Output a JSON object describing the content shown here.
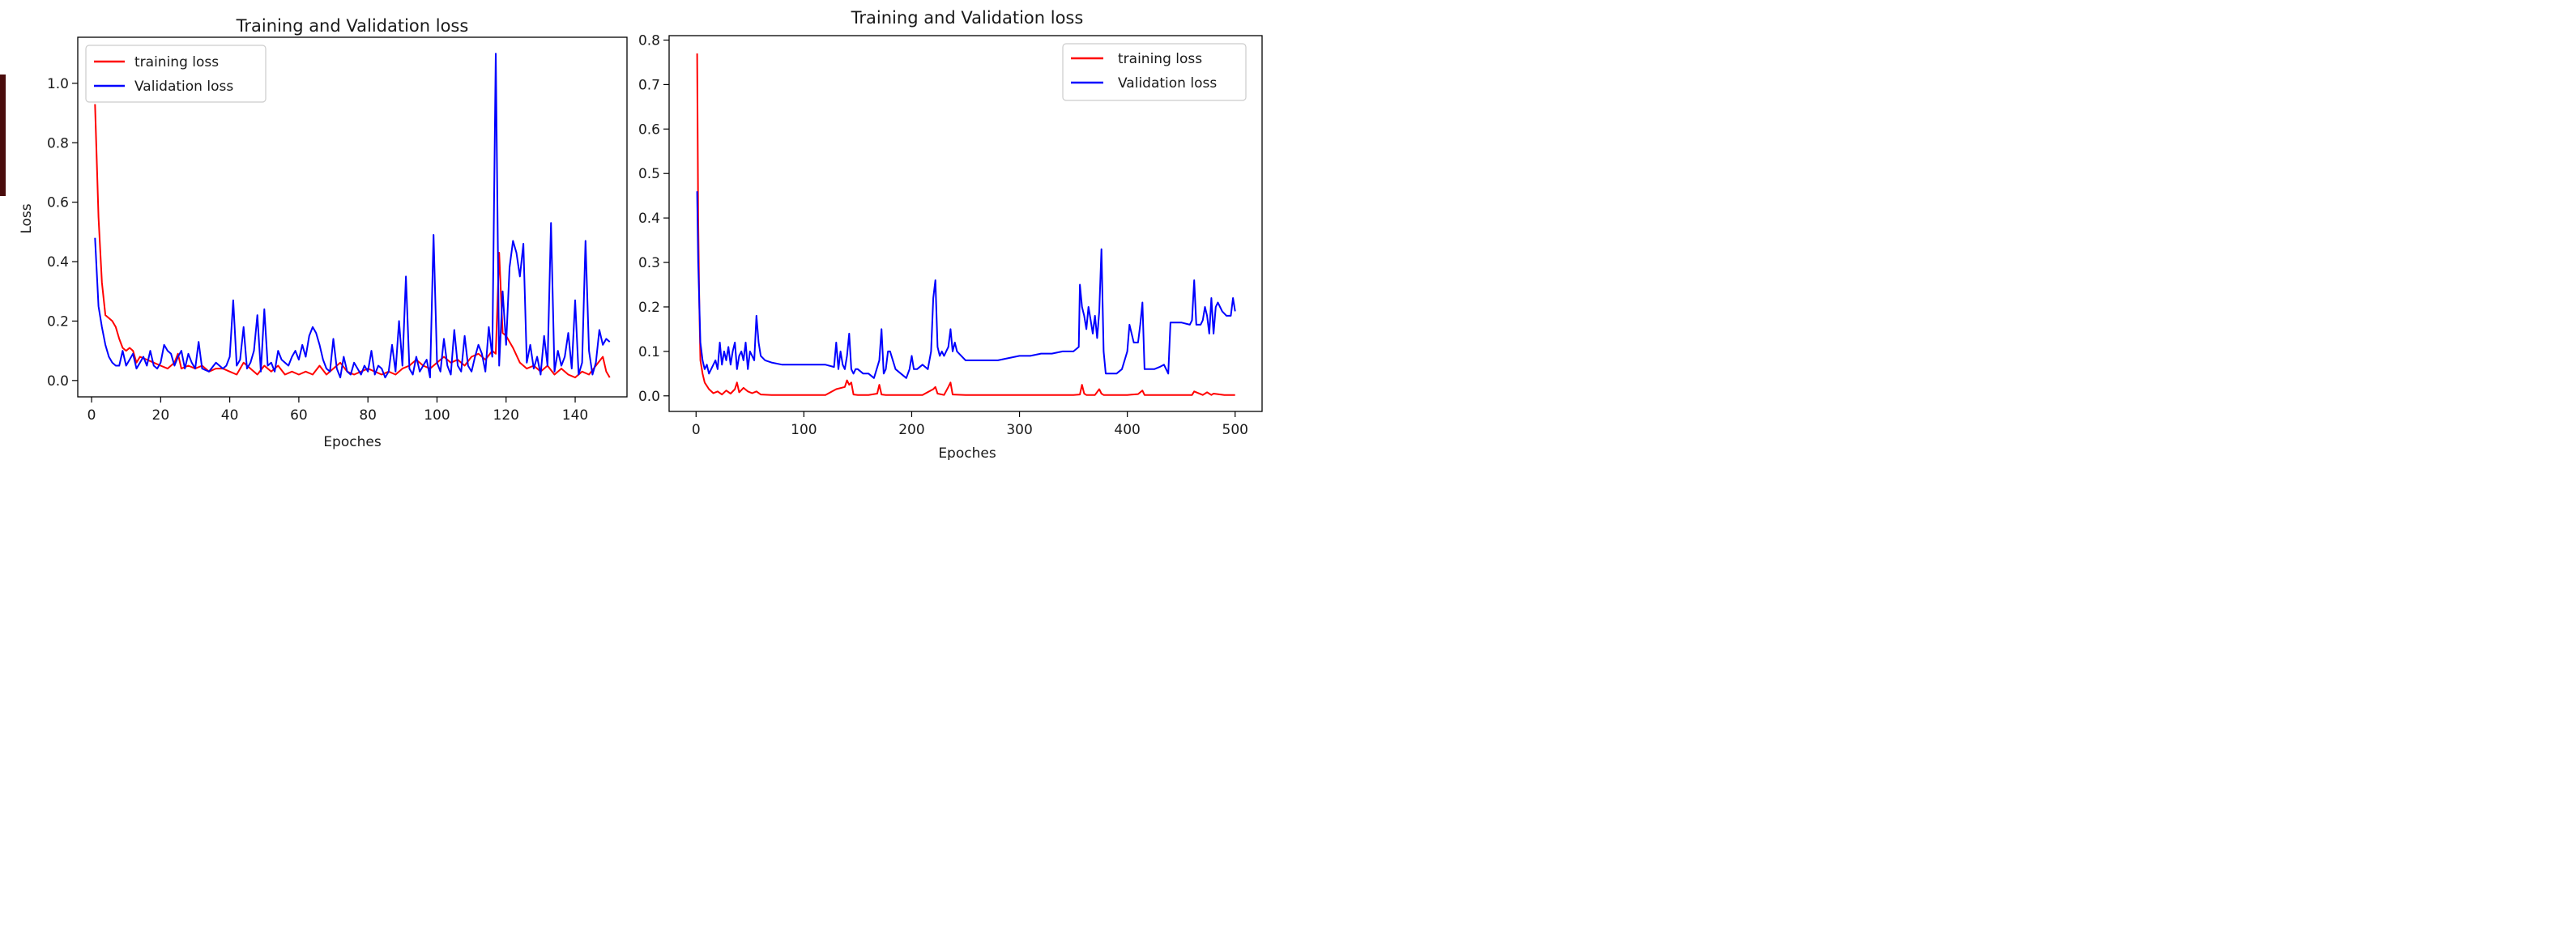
{
  "chart_data": [
    {
      "type": "line",
      "title": "Training and Validation loss",
      "xlabel": "Epoches",
      "ylabel": "Loss",
      "xlim": [
        -4,
        155
      ],
      "ylim": [
        -0.055,
        1.155
      ],
      "xticks": [
        0,
        20,
        40,
        60,
        80,
        100,
        120,
        140
      ],
      "yticks": [
        0.0,
        0.2,
        0.4,
        0.6,
        0.8,
        1.0
      ],
      "ytick_format": 1,
      "legend_position": "top-left",
      "grid": false,
      "series": [
        {
          "name": "training loss",
          "color": "#ff0000",
          "x": [
            1,
            2,
            3,
            4,
            5,
            6,
            7,
            8,
            9,
            10,
            11,
            12,
            13,
            14,
            16,
            18,
            20,
            22,
            24,
            25,
            26,
            28,
            30,
            32,
            34,
            36,
            38,
            40,
            42,
            44,
            46,
            48,
            50,
            52,
            54,
            56,
            58,
            60,
            62,
            64,
            66,
            68,
            70,
            72,
            74,
            76,
            78,
            80,
            82,
            84,
            86,
            88,
            90,
            92,
            94,
            96,
            98,
            100,
            102,
            104,
            106,
            108,
            110,
            112,
            114,
            116,
            117,
            118,
            119,
            120,
            122,
            124,
            126,
            128,
            130,
            132,
            134,
            136,
            138,
            140,
            142,
            144,
            146,
            148,
            149,
            150
          ],
          "y": [
            0.93,
            0.55,
            0.33,
            0.22,
            0.21,
            0.2,
            0.18,
            0.14,
            0.11,
            0.1,
            0.11,
            0.1,
            0.06,
            0.08,
            0.07,
            0.06,
            0.05,
            0.04,
            0.06,
            0.09,
            0.04,
            0.05,
            0.04,
            0.05,
            0.03,
            0.04,
            0.04,
            0.03,
            0.02,
            0.06,
            0.04,
            0.02,
            0.05,
            0.03,
            0.05,
            0.02,
            0.03,
            0.02,
            0.03,
            0.02,
            0.05,
            0.02,
            0.04,
            0.06,
            0.03,
            0.02,
            0.03,
            0.04,
            0.03,
            0.02,
            0.03,
            0.02,
            0.04,
            0.05,
            0.07,
            0.05,
            0.04,
            0.06,
            0.08,
            0.06,
            0.07,
            0.05,
            0.08,
            0.09,
            0.07,
            0.1,
            0.09,
            0.43,
            0.16,
            0.15,
            0.11,
            0.06,
            0.04,
            0.05,
            0.03,
            0.05,
            0.02,
            0.04,
            0.02,
            0.01,
            0.03,
            0.02,
            0.05,
            0.08,
            0.03,
            0.01
          ]
        },
        {
          "name": "Validation loss",
          "color": "#0000ff",
          "x": [
            1,
            2,
            3,
            4,
            5,
            6,
            7,
            8,
            9,
            10,
            12,
            13,
            14,
            15,
            16,
            17,
            18,
            19,
            20,
            21,
            22,
            23,
            24,
            25,
            26,
            27,
            28,
            29,
            30,
            31,
            32,
            34,
            36,
            38,
            39,
            40,
            41,
            42,
            43,
            44,
            45,
            46,
            47,
            48,
            49,
            50,
            51,
            52,
            53,
            54,
            55,
            56,
            57,
            58,
            59,
            60,
            61,
            62,
            63,
            64,
            65,
            66,
            67,
            68,
            69,
            70,
            71,
            72,
            73,
            74,
            75,
            76,
            77,
            78,
            79,
            80,
            81,
            82,
            83,
            84,
            85,
            86,
            87,
            88,
            89,
            90,
            91,
            92,
            93,
            94,
            95,
            96,
            97,
            98,
            99,
            100,
            101,
            102,
            103,
            104,
            105,
            106,
            107,
            108,
            109,
            110,
            111,
            112,
            113,
            114,
            115,
            116,
            117,
            118,
            119,
            120,
            121,
            122,
            123,
            124,
            125,
            126,
            127,
            128,
            129,
            130,
            131,
            132,
            133,
            134,
            135,
            136,
            137,
            138,
            139,
            140,
            141,
            142,
            143,
            144,
            145,
            146,
            147,
            148,
            149,
            150
          ],
          "y": [
            0.48,
            0.25,
            0.18,
            0.12,
            0.08,
            0.06,
            0.05,
            0.05,
            0.1,
            0.05,
            0.09,
            0.04,
            0.06,
            0.08,
            0.05,
            0.1,
            0.05,
            0.04,
            0.06,
            0.12,
            0.1,
            0.09,
            0.05,
            0.08,
            0.1,
            0.04,
            0.09,
            0.06,
            0.04,
            0.13,
            0.04,
            0.03,
            0.06,
            0.04,
            0.05,
            0.08,
            0.27,
            0.05,
            0.07,
            0.18,
            0.04,
            0.06,
            0.1,
            0.22,
            0.03,
            0.24,
            0.05,
            0.06,
            0.03,
            0.1,
            0.07,
            0.06,
            0.05,
            0.08,
            0.1,
            0.07,
            0.12,
            0.08,
            0.15,
            0.18,
            0.16,
            0.12,
            0.07,
            0.04,
            0.03,
            0.14,
            0.04,
            0.01,
            0.08,
            0.03,
            0.02,
            0.06,
            0.04,
            0.02,
            0.05,
            0.03,
            0.1,
            0.02,
            0.05,
            0.04,
            0.01,
            0.03,
            0.12,
            0.03,
            0.2,
            0.05,
            0.35,
            0.04,
            0.02,
            0.08,
            0.03,
            0.05,
            0.07,
            0.01,
            0.49,
            0.06,
            0.03,
            0.14,
            0.05,
            0.02,
            0.17,
            0.05,
            0.03,
            0.15,
            0.05,
            0.03,
            0.08,
            0.12,
            0.09,
            0.03,
            0.18,
            0.08,
            1.1,
            0.05,
            0.3,
            0.12,
            0.38,
            0.47,
            0.43,
            0.35,
            0.46,
            0.06,
            0.12,
            0.04,
            0.08,
            0.02,
            0.15,
            0.05,
            0.53,
            0.03,
            0.1,
            0.05,
            0.08,
            0.16,
            0.04,
            0.27,
            0.02,
            0.06,
            0.47,
            0.1,
            0.02,
            0.06,
            0.17,
            0.12,
            0.14,
            0.13
          ]
        }
      ]
    },
    {
      "type": "line",
      "title": "Training and Validation loss",
      "xlabel": "Epoches",
      "ylabel": "",
      "xlim": [
        -25,
        525
      ],
      "ylim": [
        -0.035,
        0.81
      ],
      "xticks": [
        0,
        100,
        200,
        300,
        400,
        500
      ],
      "yticks": [
        0.0,
        0.1,
        0.2,
        0.3,
        0.4,
        0.5,
        0.6,
        0.7,
        0.8
      ],
      "ytick_format": 1,
      "legend_position": "top-right",
      "grid": false,
      "series": [
        {
          "name": "training loss",
          "color": "#ff0000",
          "x": [
            1,
            2,
            3,
            4,
            6,
            8,
            12,
            16,
            20,
            24,
            28,
            32,
            36,
            38,
            40,
            44,
            48,
            52,
            56,
            60,
            70,
            80,
            100,
            120,
            130,
            138,
            140,
            142,
            144,
            146,
            150,
            160,
            168,
            170,
            172,
            176,
            190,
            200,
            210,
            220,
            222,
            224,
            230,
            234,
            236,
            238,
            250,
            300,
            350,
            356,
            358,
            360,
            362,
            370,
            374,
            376,
            378,
            380,
            400,
            410,
            414,
            416,
            440,
            460,
            462,
            470,
            474,
            478,
            480,
            490,
            500
          ],
          "y": [
            0.77,
            0.4,
            0.2,
            0.08,
            0.05,
            0.03,
            0.015,
            0.006,
            0.01,
            0.003,
            0.012,
            0.005,
            0.015,
            0.03,
            0.008,
            0.018,
            0.01,
            0.006,
            0.01,
            0.003,
            0.002,
            0.002,
            0.002,
            0.002,
            0.015,
            0.02,
            0.035,
            0.025,
            0.03,
            0.003,
            0.002,
            0.002,
            0.005,
            0.025,
            0.003,
            0.002,
            0.002,
            0.002,
            0.002,
            0.015,
            0.02,
            0.005,
            0.002,
            0.02,
            0.03,
            0.003,
            0.002,
            0.002,
            0.002,
            0.003,
            0.025,
            0.005,
            0.002,
            0.002,
            0.015,
            0.005,
            0.002,
            0.002,
            0.002,
            0.004,
            0.012,
            0.002,
            0.002,
            0.002,
            0.01,
            0.002,
            0.008,
            0.002,
            0.005,
            0.002,
            0.002
          ]
        },
        {
          "name": "Validation loss",
          "color": "#0000ff",
          "x": [
            1,
            2,
            4,
            6,
            8,
            10,
            12,
            14,
            16,
            18,
            20,
            22,
            24,
            26,
            28,
            30,
            32,
            34,
            36,
            38,
            40,
            42,
            44,
            46,
            48,
            50,
            52,
            54,
            56,
            58,
            60,
            64,
            70,
            80,
            90,
            100,
            110,
            120,
            128,
            130,
            132,
            134,
            136,
            138,
            140,
            142,
            144,
            146,
            148,
            150,
            155,
            160,
            165,
            170,
            172,
            174,
            176,
            178,
            180,
            185,
            190,
            195,
            198,
            200,
            202,
            205,
            210,
            215,
            218,
            220,
            222,
            224,
            226,
            228,
            230,
            232,
            234,
            236,
            238,
            240,
            242,
            250,
            260,
            270,
            280,
            290,
            300,
            310,
            320,
            330,
            340,
            350,
            355,
            356,
            358,
            360,
            362,
            364,
            366,
            368,
            370,
            372,
            374,
            376,
            378,
            380,
            385,
            390,
            395,
            400,
            402,
            406,
            410,
            412,
            414,
            416,
            420,
            425,
            430,
            434,
            438,
            440,
            450,
            458,
            460,
            462,
            464,
            468,
            470,
            472,
            474,
            476,
            478,
            480,
            482,
            484,
            488,
            492,
            496,
            498,
            500
          ],
          "y": [
            0.46,
            0.3,
            0.12,
            0.08,
            0.06,
            0.07,
            0.05,
            0.06,
            0.07,
            0.08,
            0.06,
            0.12,
            0.07,
            0.1,
            0.08,
            0.11,
            0.07,
            0.1,
            0.12,
            0.06,
            0.09,
            0.1,
            0.08,
            0.12,
            0.06,
            0.1,
            0.09,
            0.08,
            0.18,
            0.12,
            0.09,
            0.08,
            0.075,
            0.07,
            0.07,
            0.07,
            0.07,
            0.07,
            0.065,
            0.12,
            0.06,
            0.1,
            0.07,
            0.06,
            0.09,
            0.14,
            0.06,
            0.05,
            0.06,
            0.06,
            0.05,
            0.05,
            0.04,
            0.08,
            0.15,
            0.05,
            0.06,
            0.1,
            0.1,
            0.06,
            0.05,
            0.04,
            0.06,
            0.09,
            0.06,
            0.06,
            0.07,
            0.06,
            0.1,
            0.22,
            0.26,
            0.11,
            0.09,
            0.1,
            0.09,
            0.1,
            0.11,
            0.15,
            0.1,
            0.12,
            0.1,
            0.08,
            0.08,
            0.08,
            0.08,
            0.085,
            0.09,
            0.09,
            0.095,
            0.095,
            0.1,
            0.1,
            0.11,
            0.25,
            0.2,
            0.18,
            0.15,
            0.2,
            0.17,
            0.14,
            0.18,
            0.13,
            0.19,
            0.33,
            0.1,
            0.05,
            0.05,
            0.05,
            0.06,
            0.1,
            0.16,
            0.12,
            0.12,
            0.16,
            0.21,
            0.06,
            0.06,
            0.06,
            0.065,
            0.07,
            0.05,
            0.165,
            0.165,
            0.16,
            0.17,
            0.26,
            0.16,
            0.16,
            0.17,
            0.2,
            0.18,
            0.14,
            0.22,
            0.14,
            0.2,
            0.21,
            0.19,
            0.18,
            0.18,
            0.22,
            0.19
          ]
        }
      ]
    }
  ]
}
